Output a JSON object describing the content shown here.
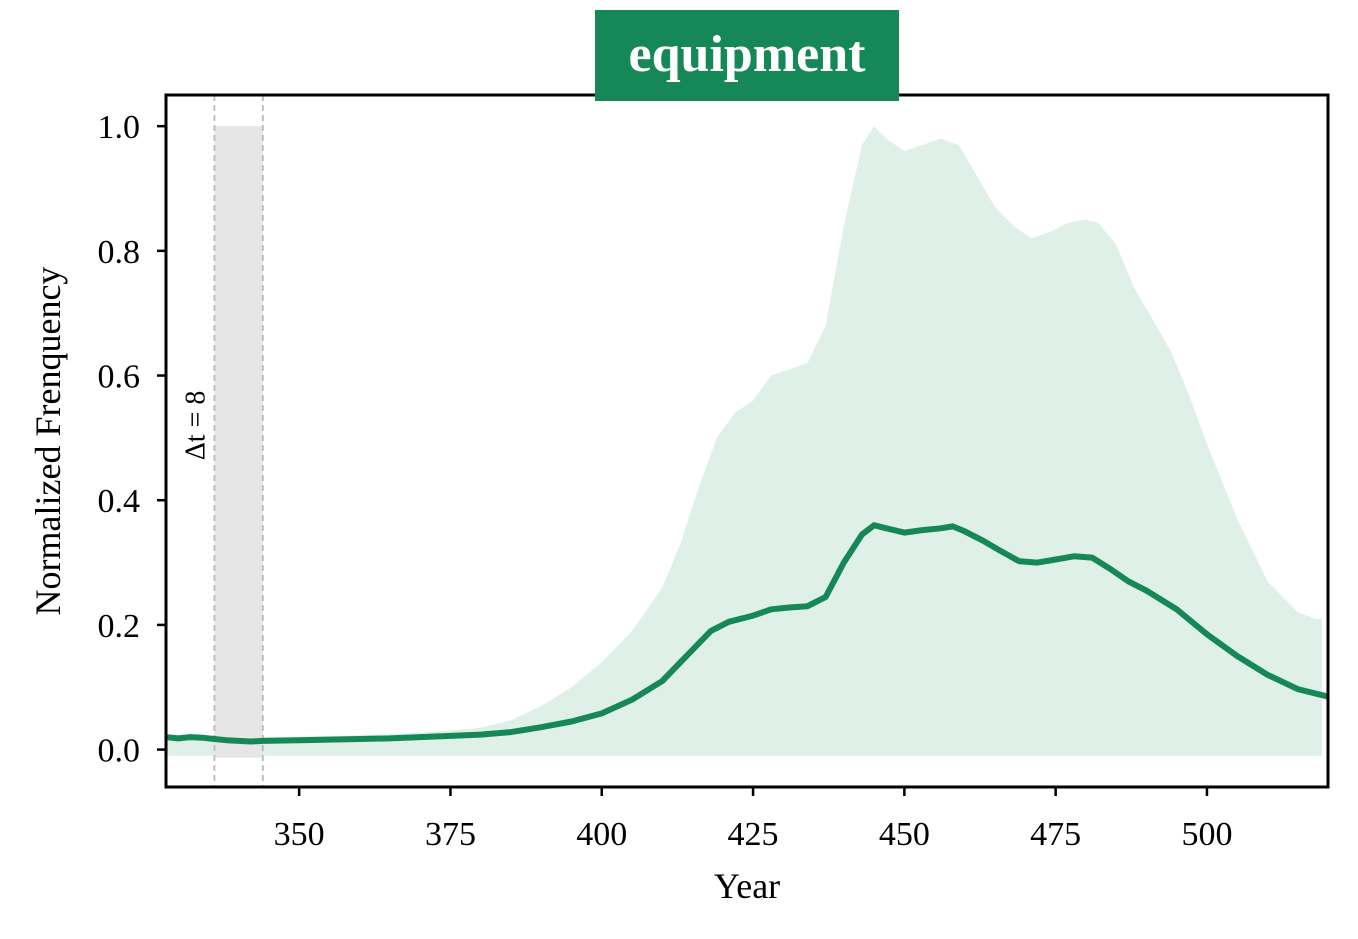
{
  "chart_data": {
    "type": "line",
    "title": "equipment",
    "xlabel": "Year",
    "ylabel": "Normalized Frenquency",
    "xlim": [
      328,
      520
    ],
    "ylim": [
      -0.06,
      1.05
    ],
    "xticks": [
      350,
      375,
      400,
      425,
      450,
      475,
      500
    ],
    "yticks": [
      0.0,
      0.2,
      0.4,
      0.6,
      0.8,
      1.0
    ],
    "xtick_labels": [
      "350",
      "375",
      "400",
      "425",
      "450",
      "475",
      "500"
    ],
    "ytick_labels": [
      "0.0",
      "0.2",
      "0.4",
      "0.6",
      "0.8",
      "1.0"
    ],
    "grid": false,
    "annotation": {
      "label": "Δt = 8",
      "span_start": 336,
      "span_end": 344,
      "span_top": 1.0
    },
    "colors": {
      "line": "#168757",
      "band": "#dff0e9",
      "span": "#e6e6e6",
      "span_edge": "#bbbbbb",
      "title_bg": "#168757"
    },
    "series": [
      {
        "kind": "line",
        "x": [
          328,
          330,
          332,
          334,
          336,
          338,
          340,
          342,
          344,
          350,
          355,
          360,
          365,
          370,
          375,
          380,
          385,
          390,
          395,
          400,
          405,
          410,
          415,
          418,
          421,
          425,
          428,
          431,
          434,
          437,
          440,
          443,
          445,
          447,
          450,
          453,
          456,
          458,
          460,
          463,
          466,
          469,
          472,
          475,
          478,
          481,
          484,
          487,
          490,
          495,
          500,
          505,
          510,
          515,
          520
        ],
        "y": [
          0.02,
          0.018,
          0.02,
          0.019,
          0.017,
          0.015,
          0.014,
          0.013,
          0.014,
          0.015,
          0.016,
          0.017,
          0.018,
          0.02,
          0.022,
          0.024,
          0.028,
          0.036,
          0.045,
          0.058,
          0.08,
          0.11,
          0.16,
          0.19,
          0.205,
          0.215,
          0.225,
          0.228,
          0.23,
          0.245,
          0.3,
          0.345,
          0.36,
          0.355,
          0.348,
          0.352,
          0.355,
          0.358,
          0.35,
          0.335,
          0.318,
          0.302,
          0.3,
          0.305,
          0.31,
          0.308,
          0.29,
          0.27,
          0.255,
          0.225,
          0.185,
          0.15,
          0.12,
          0.097,
          0.085
        ]
      },
      {
        "kind": "band",
        "x": [
          328,
          340,
          350,
          360,
          370,
          380,
          385,
          390,
          395,
          400,
          405,
          410,
          413,
          416,
          419,
          422,
          425,
          428,
          431,
          434,
          437,
          440,
          443,
          445,
          447,
          450,
          453,
          456,
          459,
          462,
          465,
          468,
          471,
          474,
          477,
          480,
          482,
          485,
          488,
          491,
          494,
          497,
          500,
          505,
          510,
          515,
          518,
          519
        ],
        "lower": [
          -0.01,
          -0.01,
          -0.01,
          -0.01,
          -0.01,
          -0.01,
          -0.01,
          -0.01,
          -0.01,
          -0.01,
          -0.01,
          -0.01,
          -0.01,
          -0.01,
          -0.01,
          -0.01,
          -0.01,
          -0.01,
          -0.01,
          -0.01,
          -0.01,
          -0.01,
          -0.01,
          -0.01,
          -0.01,
          -0.01,
          -0.01,
          -0.01,
          -0.01,
          -0.01,
          -0.01,
          -0.01,
          -0.01,
          -0.01,
          -0.01,
          -0.01,
          -0.01,
          -0.01,
          -0.01,
          -0.01,
          -0.01,
          -0.01,
          -0.01,
          -0.01,
          -0.01,
          -0.01,
          -0.01,
          -0.01
        ],
        "upper": [
          0.02,
          0.02,
          0.021,
          0.023,
          0.027,
          0.035,
          0.047,
          0.07,
          0.1,
          0.14,
          0.19,
          0.26,
          0.33,
          0.42,
          0.5,
          0.54,
          0.56,
          0.6,
          0.61,
          0.62,
          0.68,
          0.84,
          0.97,
          1.0,
          0.98,
          0.96,
          0.97,
          0.98,
          0.97,
          0.92,
          0.87,
          0.84,
          0.82,
          0.83,
          0.845,
          0.85,
          0.845,
          0.81,
          0.74,
          0.69,
          0.64,
          0.57,
          0.49,
          0.37,
          0.27,
          0.22,
          0.21,
          0.21
        ]
      }
    ]
  }
}
